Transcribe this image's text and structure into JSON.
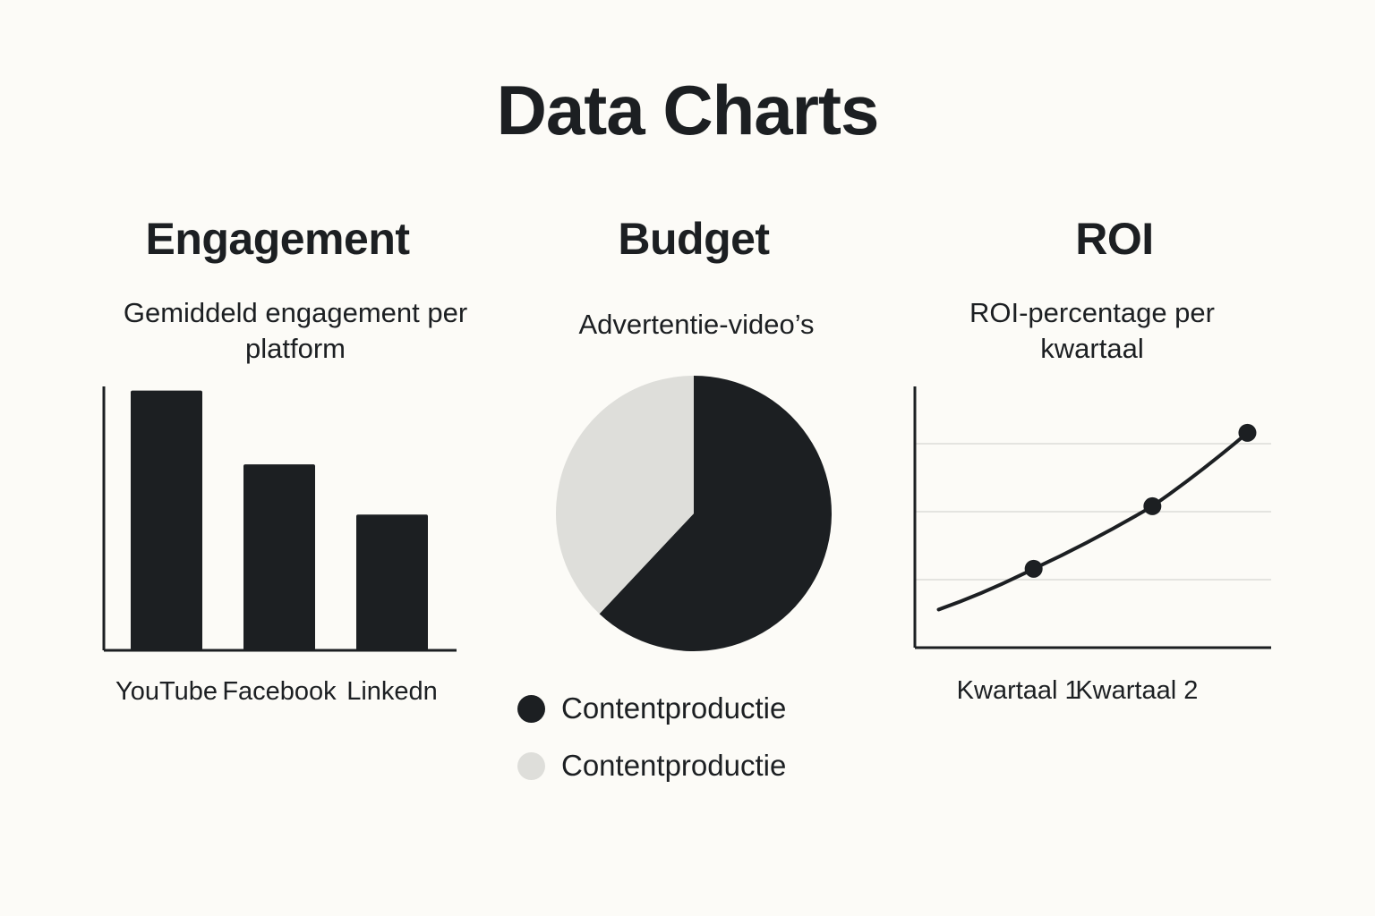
{
  "page": {
    "title": "Data Charts"
  },
  "colors": {
    "background": "#fcfbf7",
    "dark": "#1c1f22",
    "light": "#dededa",
    "grid": "#dcdcd8"
  },
  "chart_data": [
    {
      "type": "bar",
      "title": "Engagement",
      "subtitle": "Gemiddeld engagement per platform",
      "categories": [
        "YouTube",
        "Facebook",
        "Linkedn"
      ],
      "values": [
        88,
        63,
        46
      ],
      "ylim": [
        0,
        100
      ],
      "grid": false,
      "color": "#1c1f22"
    },
    {
      "type": "pie",
      "title": "Budget",
      "subtitle": "Advertentie-video’s",
      "slices": [
        {
          "label": "Contentproductie",
          "value": 62,
          "color": "#1c1f22"
        },
        {
          "label": "Contentproductie",
          "value": 38,
          "color": "#dededa"
        }
      ],
      "legend": "bottom"
    },
    {
      "type": "line",
      "title": "ROI",
      "subtitle": "ROI-percentage per kwartaal",
      "x": [
        0.6,
        1,
        1.5,
        1.9
      ],
      "y": [
        14,
        29,
        52,
        79
      ],
      "markers": [
        false,
        true,
        true,
        true
      ],
      "xtick_labels": [
        "Kwartaal 1",
        "Kwartaal 2"
      ],
      "xticks": [
        1,
        1.5
      ],
      "xlim": [
        0.5,
        2.0
      ],
      "ylim": [
        0,
        100
      ],
      "grid": true,
      "gridlines": [
        25,
        50,
        75
      ],
      "color": "#1c1f22"
    }
  ]
}
